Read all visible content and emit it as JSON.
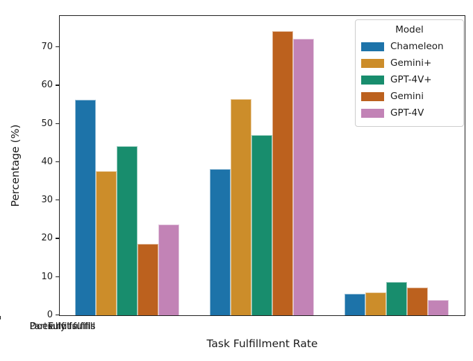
{
  "chart_data": {
    "type": "bar",
    "title": "",
    "xlabel": "Task Fulfillment Rate",
    "ylabel": "Percentage (%)",
    "categories": [
      "Fulfills",
      "Partially fulfills",
      "Does not fulfill"
    ],
    "series": [
      {
        "name": "Chameleon",
        "color": "#1d73a9",
        "values": [
          56.2,
          38.1,
          5.7
        ]
      },
      {
        "name": "Gemini+",
        "color": "#cc8d2a",
        "values": [
          37.6,
          56.4,
          6.0
        ]
      },
      {
        "name": "GPT-4V+",
        "color": "#188d6d",
        "values": [
          44.2,
          47.1,
          8.7
        ]
      },
      {
        "name": "Gemini",
        "color": "#bc611e",
        "values": [
          18.6,
          74.2,
          7.2
        ]
      },
      {
        "name": "GPT-4V",
        "color": "#c283b6",
        "values": [
          23.8,
          72.2,
          4.0
        ]
      }
    ],
    "ylim": [
      0,
      78
    ],
    "yticks": [
      0,
      10,
      20,
      30,
      40,
      50,
      60,
      70
    ],
    "grid": false,
    "legend": {
      "title": "Model",
      "position": "upper right"
    },
    "axis_color": "#1a1a1a",
    "background_color": "#ffffff"
  }
}
